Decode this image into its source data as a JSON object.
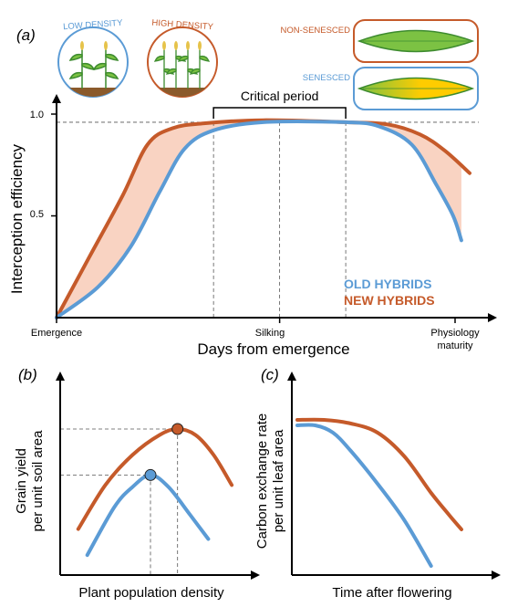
{
  "colors": {
    "old": "#5b9bd5",
    "new": "#c55a2a",
    "band": "#f9d3c2",
    "leaf_green": "#7cc243",
    "leaf_yellow": "#ffcc00",
    "axis": "#000000"
  },
  "panel_a": {
    "label": "(a)",
    "icons": {
      "low_density": "LOW DENSITY",
      "high_density": "HIGH DENSITY",
      "non_senesced": "NON-SENESCED",
      "senesced": "SENESCED"
    },
    "critical_period_label": "Critical period",
    "legend": {
      "old": "OLD HYBRIDS",
      "new": "NEW HYBRIDS"
    }
  },
  "panel_b": {
    "label": "(b)"
  },
  "panel_c": {
    "label": "(c)"
  },
  "chart_data": [
    {
      "panel": "a",
      "type": "line",
      "xlabel": "Days from emergence",
      "ylabel": "Interception efficiency",
      "x_tick_labels": [
        "Emergence",
        "Silking",
        "Physiology",
        "maturity"
      ],
      "y_tick_labels": [
        "0.5",
        "1.0"
      ],
      "xlim": [
        0,
        100
      ],
      "ylim": [
        0,
        1.1
      ],
      "critical_period": [
        38,
        70
      ],
      "silking": 54,
      "series": [
        {
          "name": "NEW HYBRIDS",
          "points": [
            [
              0,
              0
            ],
            [
              8,
              0.3
            ],
            [
              16,
              0.6
            ],
            [
              22,
              0.85
            ],
            [
              28,
              0.93
            ],
            [
              36,
              0.955
            ],
            [
              50,
              0.97
            ],
            [
              70,
              0.96
            ],
            [
              80,
              0.95
            ],
            [
              88,
              0.9
            ],
            [
              94,
              0.82
            ],
            [
              100,
              0.71
            ]
          ]
        },
        {
          "name": "OLD HYBRIDS",
          "points": [
            [
              0,
              0
            ],
            [
              10,
              0.15
            ],
            [
              18,
              0.35
            ],
            [
              25,
              0.62
            ],
            [
              31,
              0.83
            ],
            [
              38,
              0.92
            ],
            [
              50,
              0.96
            ],
            [
              70,
              0.96
            ],
            [
              78,
              0.94
            ],
            [
              86,
              0.85
            ],
            [
              92,
              0.65
            ],
            [
              96,
              0.5
            ],
            [
              98,
              0.38
            ]
          ]
        }
      ],
      "reference_line": 0.96
    },
    {
      "panel": "b",
      "type": "line",
      "xlabel": "Plant population density",
      "ylabel": "Grain yield per unit soil area",
      "ylabel_lines": [
        "Grain yield",
        "per unit soil area"
      ],
      "xlim": [
        0,
        100
      ],
      "ylim": [
        0,
        100
      ],
      "series": [
        {
          "name": "new",
          "points": [
            [
              10,
              23
            ],
            [
              25,
              45
            ],
            [
              40,
              60
            ],
            [
              55,
              70
            ],
            [
              65,
              73
            ],
            [
              75,
              70
            ],
            [
              85,
              60
            ],
            [
              95,
              45
            ]
          ],
          "optimum": [
            65,
            73
          ]
        },
        {
          "name": "old",
          "points": [
            [
              15,
              10
            ],
            [
              30,
              34
            ],
            [
              40,
              44
            ],
            [
              50,
              50
            ],
            [
              60,
              44
            ],
            [
              72,
              30
            ],
            [
              82,
              18
            ]
          ],
          "optimum": [
            50,
            50
          ]
        }
      ]
    },
    {
      "panel": "c",
      "type": "line",
      "xlabel": "Time after flowering",
      "ylabel": "Carbon exchange rate per unit leaf area",
      "ylabel_lines": [
        "Carbon exchange rate",
        "per unit leaf area"
      ],
      "xlim": [
        0,
        100
      ],
      "ylim": [
        0,
        100
      ],
      "series": [
        {
          "name": "new",
          "points": [
            [
              0,
              85
            ],
            [
              15,
              85
            ],
            [
              30,
              83
            ],
            [
              45,
              78
            ],
            [
              60,
              65
            ],
            [
              75,
              45
            ],
            [
              85,
              33
            ],
            [
              92,
              25
            ]
          ]
        },
        {
          "name": "old",
          "points": [
            [
              0,
              82
            ],
            [
              10,
              82
            ],
            [
              20,
              78
            ],
            [
              30,
              68
            ],
            [
              45,
              50
            ],
            [
              60,
              30
            ],
            [
              75,
              5
            ]
          ]
        }
      ]
    }
  ]
}
